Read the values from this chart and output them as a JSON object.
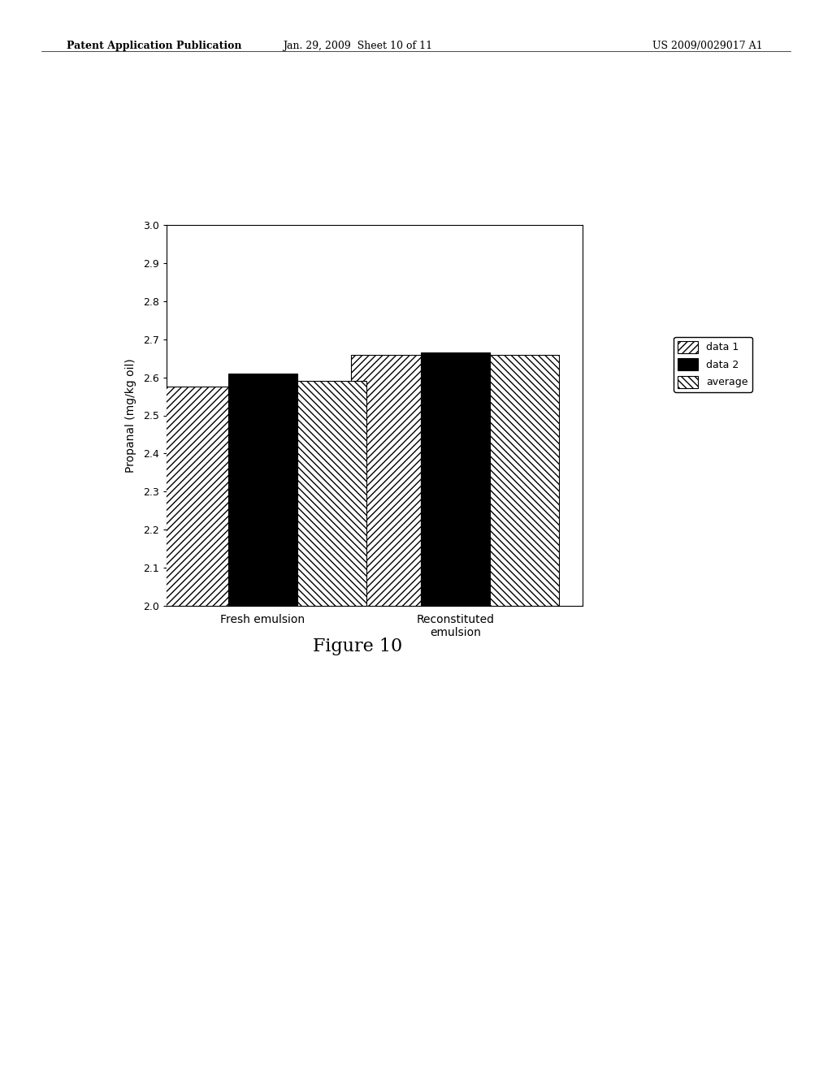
{
  "categories": [
    "Fresh emulsion",
    "Reconstituted\nemulsion"
  ],
  "series": {
    "data 1": [
      2.575,
      2.66
    ],
    "data 2": [
      2.61,
      2.665
    ],
    "average": [
      2.59,
      2.66
    ]
  },
  "bar_width": 0.18,
  "ylim": [
    2.0,
    3.0
  ],
  "yticks": [
    2.0,
    2.1,
    2.2,
    2.3,
    2.4,
    2.5,
    2.6,
    2.7,
    2.8,
    2.9,
    3.0
  ],
  "ylabel": "Propanal (mg/kg oil)",
  "legend_labels": [
    "data 1",
    "data 2",
    "average"
  ],
  "hatches": [
    "////",
    "",
    "\\\\\\\\"
  ],
  "colors": [
    "white",
    "black",
    "white"
  ],
  "edgecolors": [
    "black",
    "black",
    "black"
  ],
  "title": "Figure 10",
  "header_left": "Patent Application Publication",
  "header_mid": "Jan. 29, 2009  Sheet 10 of 11",
  "header_right": "US 2009/0029017 A1",
  "background_color": "#ffffff"
}
